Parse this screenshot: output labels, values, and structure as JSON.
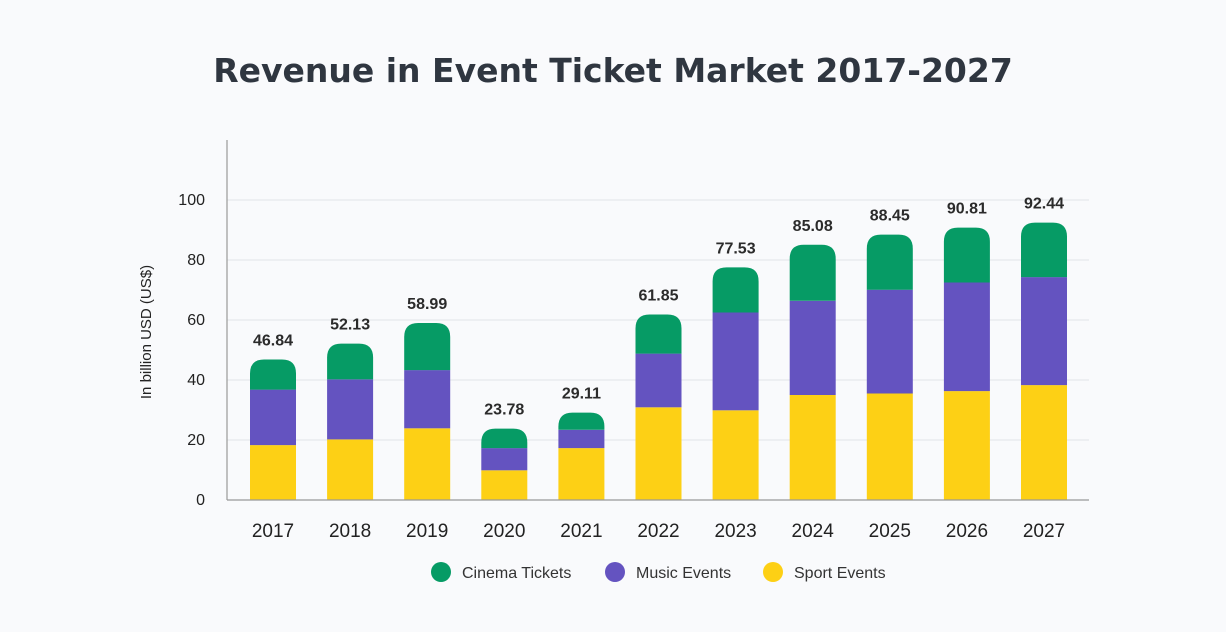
{
  "chart_data": {
    "type": "bar",
    "stacked": true,
    "title": "Revenue in Event Ticket Market 2017-2027",
    "xlabel": "",
    "ylabel": "In billion USD (US$)",
    "ylim": [
      0,
      120
    ],
    "yticks": [
      0,
      20,
      40,
      60,
      80,
      100
    ],
    "grid": true,
    "legend_position": "bottom",
    "categories": [
      "2017",
      "2018",
      "2019",
      "2020",
      "2021",
      "2022",
      "2023",
      "2024",
      "2025",
      "2026",
      "2027"
    ],
    "series": [
      {
        "name": "Sport Events",
        "color": "#fdd015",
        "values": [
          18.3,
          20.2,
          23.9,
          9.9,
          17.3,
          30.9,
          29.9,
          35.0,
          35.5,
          36.3,
          38.3
        ]
      },
      {
        "name": "Music Events",
        "color": "#6453c0",
        "values": [
          18.5,
          20.0,
          19.4,
          7.4,
          6.1,
          17.9,
          32.6,
          31.4,
          34.6,
          36.2,
          36.0
        ]
      },
      {
        "name": "Cinema Tickets",
        "color": "#069b65",
        "values": [
          10.04,
          11.93,
          15.69,
          6.48,
          5.71,
          13.05,
          15.03,
          18.68,
          18.35,
          18.31,
          18.14
        ]
      }
    ],
    "totals": [
      "46.84",
      "52.13",
      "58.99",
      "23.78",
      "29.11",
      "61.85",
      "77.53",
      "85.08",
      "88.45",
      "90.81",
      "92.44"
    ],
    "legend_order": [
      "Cinema Tickets",
      "Music Events",
      "Sport Events"
    ]
  }
}
